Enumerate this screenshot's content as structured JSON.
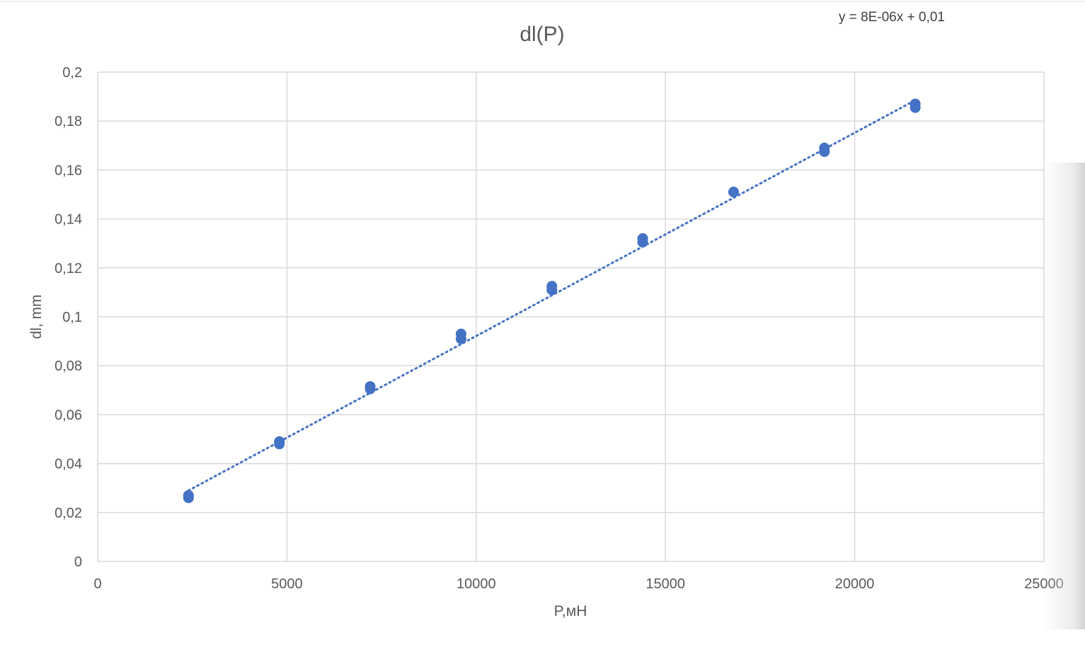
{
  "chart_data": {
    "type": "scatter",
    "title": "dl(P)",
    "xlabel": "P,мН",
    "ylabel": "dl, mm",
    "xlim": [
      0,
      25000
    ],
    "ylim": [
      0,
      0.2
    ],
    "x_ticks": [
      0,
      5000,
      10000,
      15000,
      20000,
      25000
    ],
    "x_tick_labels": [
      "0",
      "5000",
      "10000",
      "15000",
      "20000",
      "25000"
    ],
    "y_ticks": [
      0,
      0.02,
      0.04,
      0.06,
      0.08,
      0.1,
      0.12,
      0.14,
      0.16,
      0.18,
      0.2
    ],
    "y_tick_labels": [
      "0",
      "0,02",
      "0,04",
      "0,06",
      "0,08",
      "0,1",
      "0,12",
      "0,14",
      "0,16",
      "0,18",
      "0,2"
    ],
    "grid": true,
    "series": [
      {
        "color": "#4472C4",
        "points": [
          {
            "x": 2400,
            "y": 0.027
          },
          {
            "x": 2400,
            "y": 0.026
          },
          {
            "x": 4800,
            "y": 0.049
          },
          {
            "x": 4800,
            "y": 0.048
          },
          {
            "x": 7200,
            "y": 0.0715
          },
          {
            "x": 7200,
            "y": 0.0705
          },
          {
            "x": 9600,
            "y": 0.093
          },
          {
            "x": 9600,
            "y": 0.091
          },
          {
            "x": 12000,
            "y": 0.1125
          },
          {
            "x": 12000,
            "y": 0.111
          },
          {
            "x": 14400,
            "y": 0.132
          },
          {
            "x": 14400,
            "y": 0.1305
          },
          {
            "x": 16800,
            "y": 0.151
          },
          {
            "x": 19200,
            "y": 0.169
          },
          {
            "x": 19200,
            "y": 0.1675
          },
          {
            "x": 21600,
            "y": 0.187
          },
          {
            "x": 21600,
            "y": 0.1855
          }
        ]
      }
    ],
    "trendline": {
      "type": "linear",
      "style": "dotted",
      "color": "#4472C4",
      "x_start": 2400,
      "y_start": 0.029,
      "x_end": 21600,
      "y_end": 0.1885,
      "equation": "y = 8E-06x + 0,01"
    }
  },
  "colors": {
    "grid": "#d9d9d9",
    "axis_text": "#595959",
    "marker": "#4472C4"
  }
}
